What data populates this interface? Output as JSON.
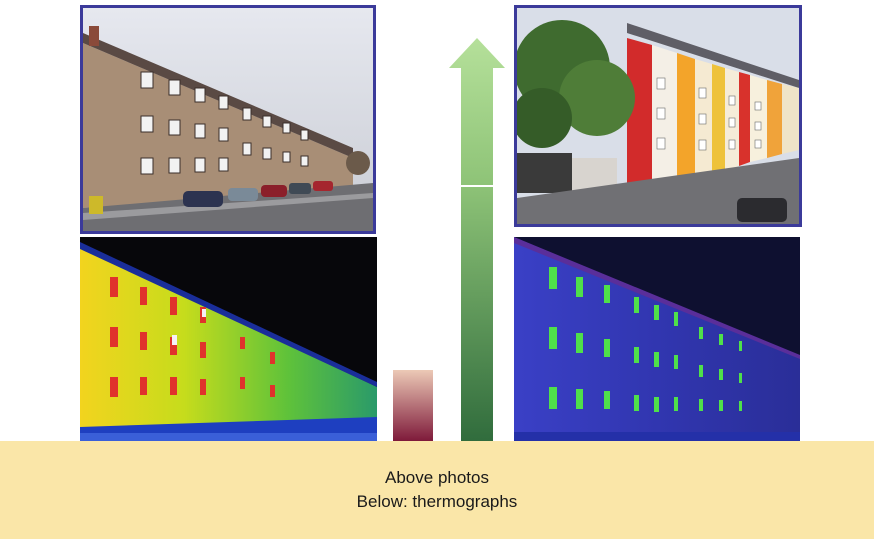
{
  "caption": {
    "line1": "Above photos",
    "line2": "Below: thermographs"
  },
  "panels": {
    "before_photo": {
      "subject": "unrenovated grey apartment block with parked cars"
    },
    "after_photo": {
      "subject": "renovated apartment block with colorful facade"
    },
    "before_thermograph": {
      "palette": "hot: yellow/green/red"
    },
    "after_thermograph": {
      "palette": "cold: blue/purple"
    }
  },
  "colors": {
    "frame": "#3b3a9a",
    "caption_bg": "#fae6a8",
    "arrow_top": "#a8d88a",
    "arrow_bottom": "#2f6b3c",
    "small_bar_top": "#e8c5b0",
    "small_bar_bottom": "#7a1033"
  },
  "icons": {
    "arrow": "up-arrow-icon"
  }
}
